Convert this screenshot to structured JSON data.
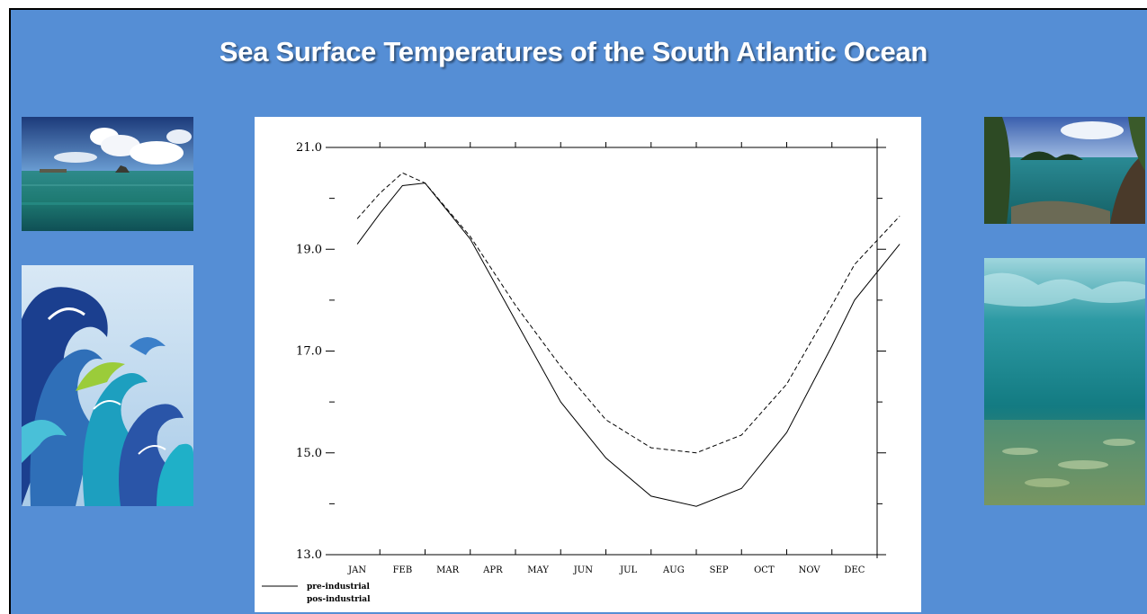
{
  "slide": {
    "title": "Sea Surface Temperatures of the South Atlantic Ocean",
    "background_color": "#558ed5",
    "images": [
      {
        "name": "tropical-sea-with-clouds-photo",
        "side": "left"
      },
      {
        "name": "stylized-waves-illustration",
        "side": "left"
      },
      {
        "name": "island-lagoon-photo",
        "side": "right"
      },
      {
        "name": "underwater-sandy-floor-photo",
        "side": "right"
      }
    ]
  },
  "chart_data": {
    "type": "line",
    "title": "",
    "xlabel": "",
    "ylabel": "",
    "categories": [
      "JAN",
      "FEB",
      "MAR",
      "APR",
      "MAY",
      "JUN",
      "JUL",
      "AUG",
      "SEP",
      "OCT",
      "NOV",
      "DEC"
    ],
    "y_ticks": [
      "21.0",
      "19.0",
      "17.0",
      "15.0",
      "13.0"
    ],
    "ylim": [
      13.0,
      21.0
    ],
    "legend_position": "bottom-left",
    "series": [
      {
        "name": "pre-industrial",
        "style": "solid",
        "x": [
          0.5,
          1.0,
          1.5,
          2.0,
          3.0,
          4.0,
          5.0,
          6.0,
          7.0,
          8.0,
          9.0,
          10.0,
          11.0,
          11.5,
          12.5
        ],
        "values": [
          19.1,
          19.7,
          20.25,
          20.3,
          19.2,
          17.6,
          16.0,
          14.9,
          14.15,
          13.95,
          14.3,
          15.4,
          17.1,
          18.0,
          19.1
        ]
      },
      {
        "name": "pos-industrial",
        "style": "dashed",
        "x": [
          0.5,
          1.0,
          1.5,
          2.0,
          3.0,
          4.0,
          5.0,
          6.0,
          7.0,
          8.0,
          9.0,
          10.0,
          11.0,
          11.5,
          12.5
        ],
        "values": [
          19.6,
          20.1,
          20.5,
          20.3,
          19.25,
          17.9,
          16.7,
          15.65,
          15.1,
          15.0,
          15.35,
          16.35,
          17.9,
          18.7,
          19.65
        ]
      }
    ]
  }
}
